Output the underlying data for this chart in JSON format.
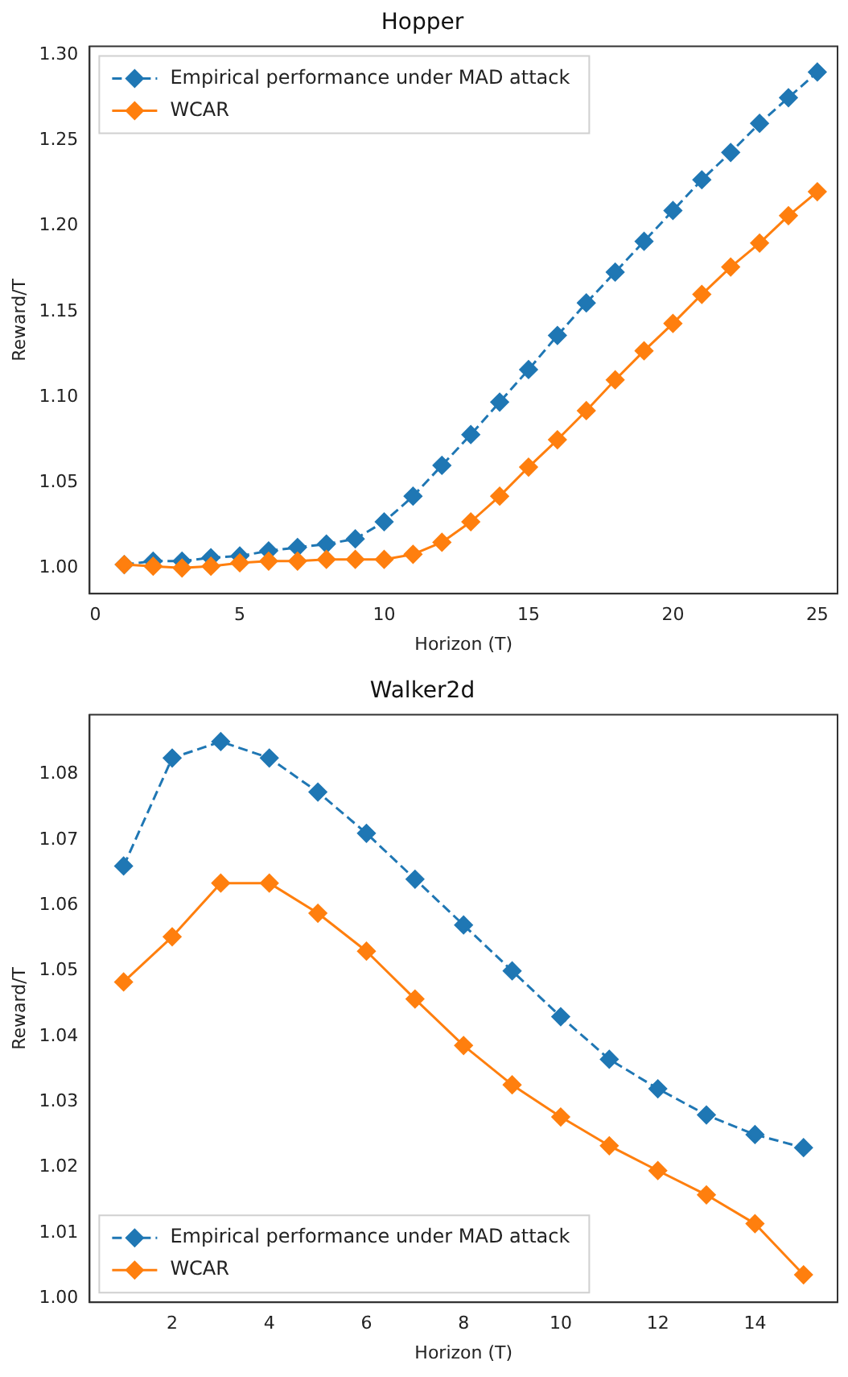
{
  "chart_data": [
    {
      "type": "line",
      "title": "Hopper",
      "xlabel": "Horizon (T)",
      "ylabel": "Reward/T",
      "x": [
        1,
        2,
        3,
        4,
        5,
        6,
        7,
        8,
        9,
        10,
        11,
        12,
        13,
        14,
        15,
        16,
        17,
        18,
        19,
        20,
        21,
        22,
        23,
        24,
        25
      ],
      "xlim": [
        -0.2,
        25.7
      ],
      "xticks": [
        0,
        5,
        10,
        15,
        20,
        25
      ],
      "ylim": [
        0.985,
        1.305
      ],
      "yticks": [
        {
          "value": 1.0,
          "label": "1.00"
        },
        {
          "value": 1.05,
          "label": "1.05"
        },
        {
          "value": 1.1,
          "label": "1.10"
        },
        {
          "value": 1.15,
          "label": "1.15"
        },
        {
          "value": 1.2,
          "label": "1.20"
        },
        {
          "value": 1.25,
          "label": "1.25"
        },
        {
          "value": 1.3,
          "label": "1.30"
        }
      ],
      "legend": "top left",
      "marker": "diamond",
      "grid": false,
      "series": [
        {
          "name": "Empirical performance under MAD attack",
          "color": "#1f77b4",
          "line_style": "dashed",
          "values": [
            1.002,
            1.004,
            1.004,
            1.006,
            1.007,
            1.01,
            1.012,
            1.014,
            1.017,
            1.027,
            1.042,
            1.06,
            1.078,
            1.097,
            1.116,
            1.136,
            1.155,
            1.173,
            1.191,
            1.209,
            1.227,
            1.243,
            1.26,
            1.275,
            1.29
          ]
        },
        {
          "name": "WCAR",
          "color": "#ff7f0e",
          "line_style": "solid",
          "values": [
            1.002,
            1.001,
            1.0,
            1.001,
            1.003,
            1.004,
            1.004,
            1.005,
            1.005,
            1.005,
            1.008,
            1.015,
            1.027,
            1.042,
            1.059,
            1.075,
            1.092,
            1.11,
            1.127,
            1.143,
            1.16,
            1.176,
            1.19,
            1.206,
            1.22
          ]
        }
      ]
    },
    {
      "type": "line",
      "title": "Walker2d",
      "xlabel": "Horizon (T)",
      "ylabel": "Reward/T",
      "x": [
        1,
        2,
        3,
        4,
        5,
        6,
        7,
        8,
        9,
        10,
        11,
        12,
        13,
        14,
        15
      ],
      "xlim": [
        0.3,
        15.7
      ],
      "xticks": [
        2,
        4,
        6,
        8,
        10,
        12,
        14
      ],
      "ylim": [
        0.9994,
        1.0891
      ],
      "yticks": [
        {
          "value": 1.0,
          "label": "1.00"
        },
        {
          "value": 1.01,
          "label": "1.01"
        },
        {
          "value": 1.02,
          "label": "1.02"
        },
        {
          "value": 1.03,
          "label": "1.03"
        },
        {
          "value": 1.04,
          "label": "1.04"
        },
        {
          "value": 1.05,
          "label": "1.05"
        },
        {
          "value": 1.06,
          "label": "1.06"
        },
        {
          "value": 1.07,
          "label": "1.07"
        },
        {
          "value": 1.08,
          "label": "1.08"
        }
      ],
      "legend": "bottom left",
      "marker": "diamond",
      "grid": false,
      "series": [
        {
          "name": "Empirical performance under MAD attack",
          "color": "#1f77b4",
          "line_style": "dashed",
          "values": [
            1.066,
            1.0825,
            1.085,
            1.0825,
            1.0773,
            1.071,
            1.064,
            1.057,
            1.05,
            1.043,
            1.0365,
            1.032,
            1.028,
            1.025,
            1.023
          ]
        },
        {
          "name": "WCAR",
          "color": "#ff7f0e",
          "line_style": "solid",
          "values": [
            1.0483,
            1.0552,
            1.0634,
            1.0634,
            1.0588,
            1.053,
            1.0457,
            1.0386,
            1.0326,
            1.0277,
            1.0233,
            1.0195,
            1.0158,
            1.0114,
            1.0036
          ]
        }
      ]
    }
  ]
}
